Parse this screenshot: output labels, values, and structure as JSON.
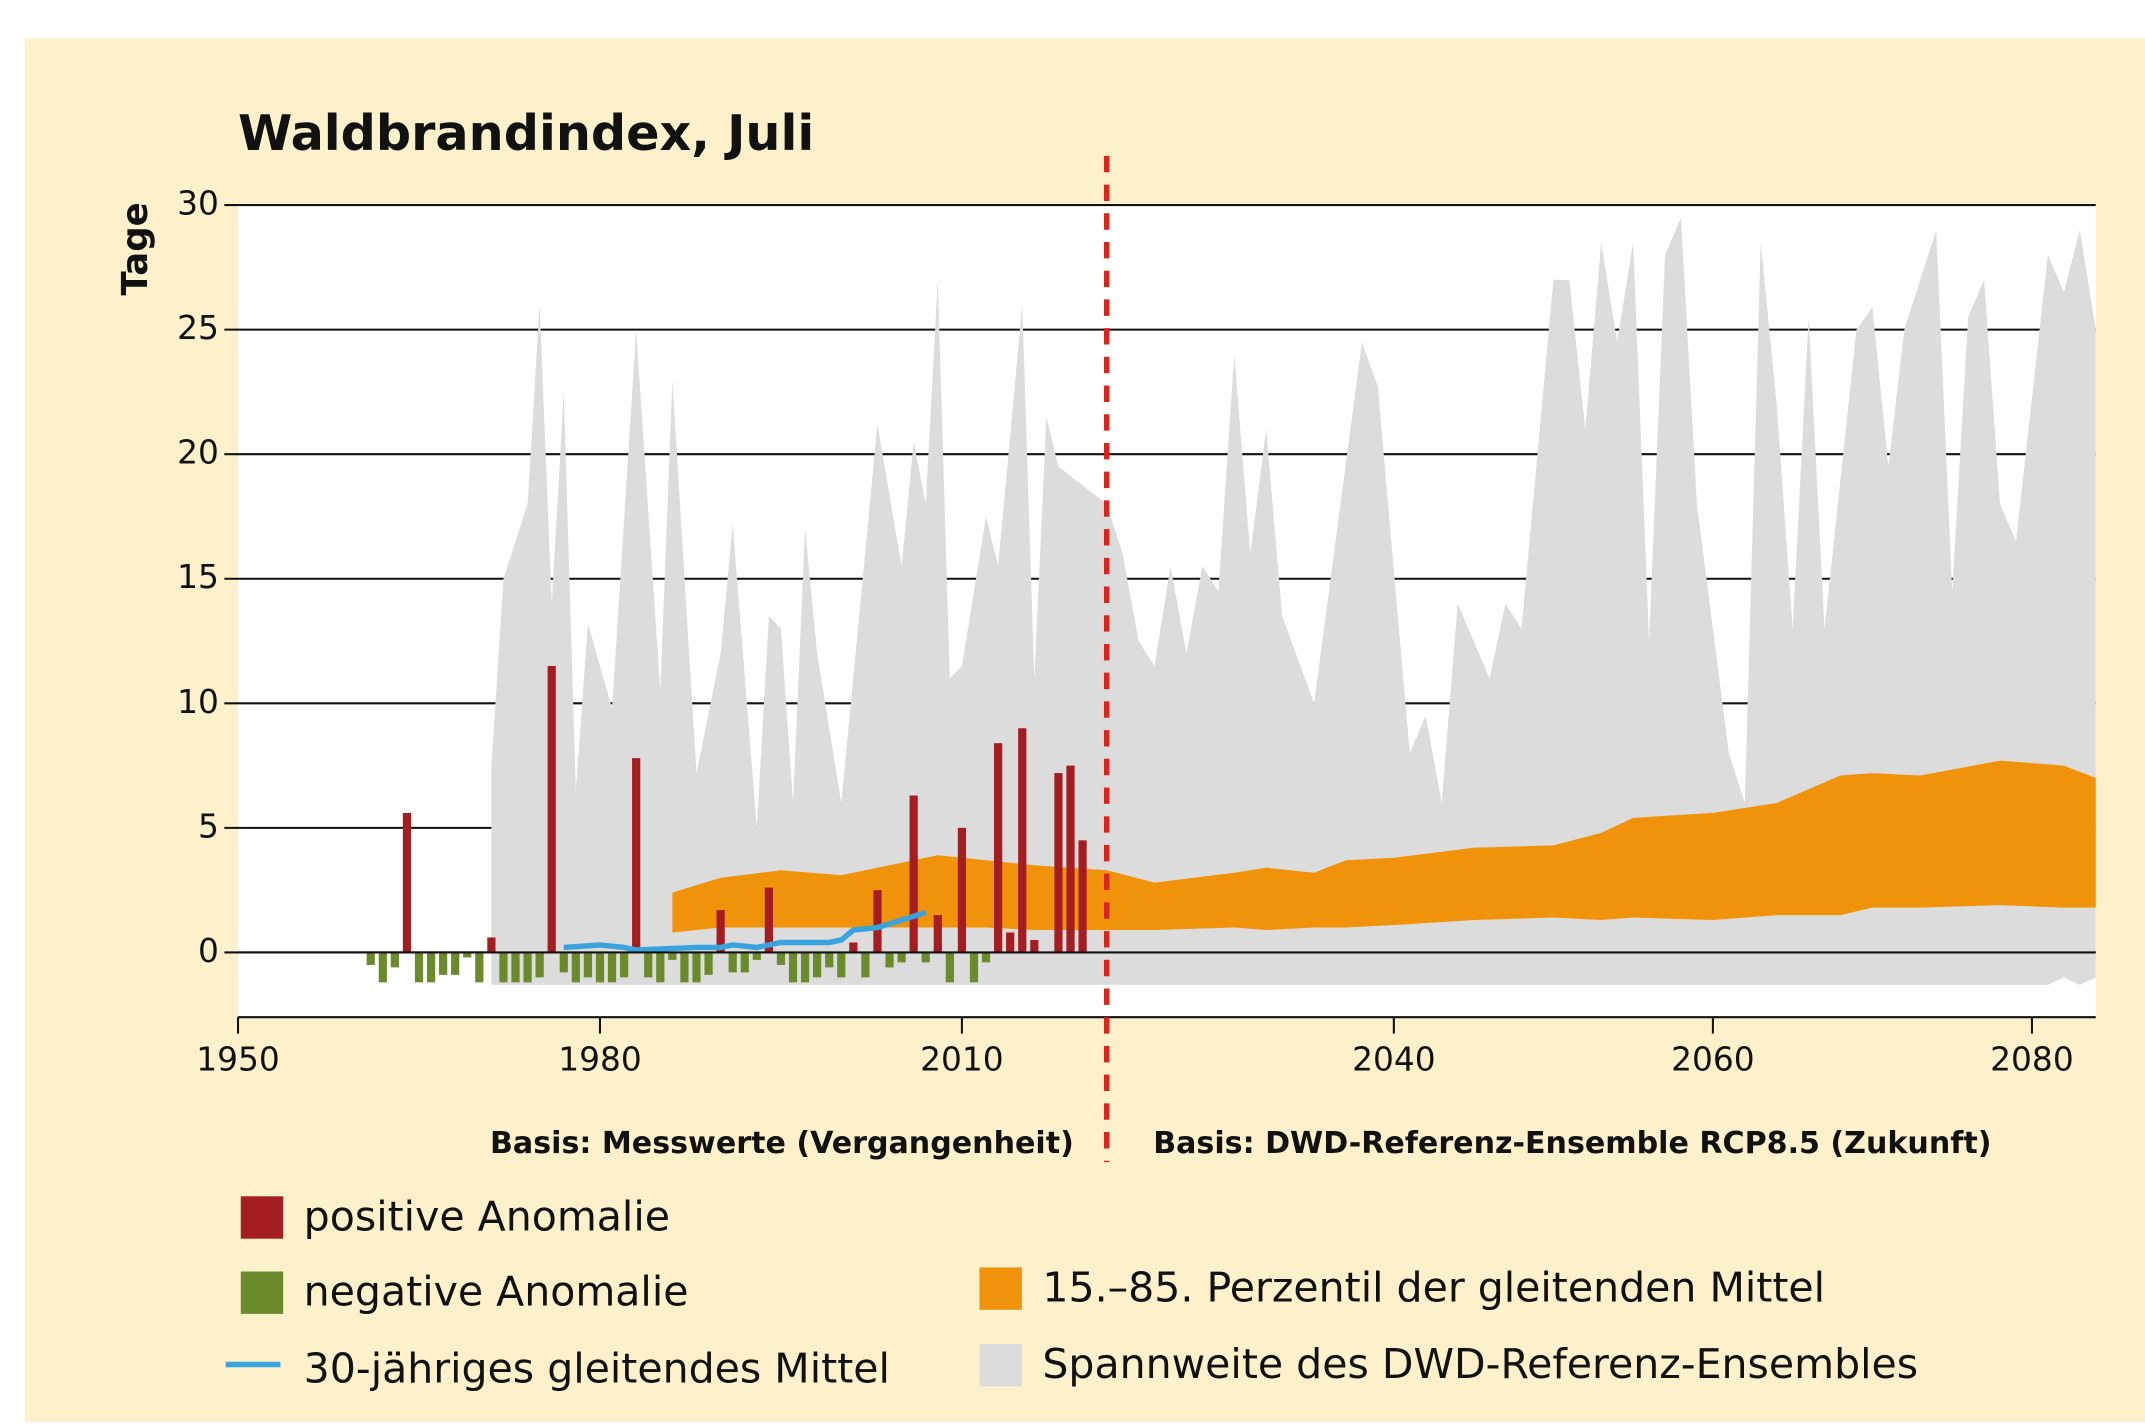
{
  "chart_data": {
    "type": "bar",
    "title": "Waldbrandindex, Juli",
    "y_label": "Tage",
    "xlim": [
      1950,
      2084
    ],
    "xticks": [
      1950,
      1980,
      2010,
      2040,
      2060,
      2080
    ],
    "ylim": [
      -2.6,
      30
    ],
    "yticks": [
      0,
      5,
      10,
      15,
      20,
      25,
      30
    ],
    "grid": true,
    "divider": 2022,
    "notes": [
      "Basis: Messwerte (Vergangenheit)",
      "Basis: DWD-Referenz-Ensemble RCP8.5 (Zukunft)"
    ],
    "anomalies": {
      "positive": {
        "name": "positive Anomalie",
        "color": "#a31d21"
      },
      "negative": {
        "name": "negative Anomalie",
        "color": "#6a8a2c"
      },
      "x": [
        1961,
        1962,
        1963,
        1964,
        1965,
        1966,
        1967,
        1968,
        1969,
        1970,
        1971,
        1972,
        1973,
        1974,
        1975,
        1976,
        1977,
        1978,
        1979,
        1980,
        1981,
        1982,
        1983,
        1984,
        1985,
        1986,
        1987,
        1988,
        1989,
        1990,
        1991,
        1992,
        1993,
        1994,
        1995,
        1996,
        1997,
        1998,
        1999,
        2000,
        2001,
        2002,
        2003,
        2004,
        2005,
        2006,
        2007,
        2008,
        2009,
        2010,
        2011,
        2012,
        2013,
        2014,
        2015,
        2016,
        2017,
        2018,
        2019,
        2020
      ],
      "values": [
        -0.5,
        -1.2,
        -0.6,
        5.6,
        -1.2,
        -1.2,
        -0.9,
        -0.9,
        -0.2,
        -1.2,
        0.6,
        -1.2,
        -1.2,
        -1.2,
        -1.0,
        11.5,
        -0.8,
        -1.2,
        -1.0,
        -1.2,
        -1.2,
        -1.0,
        7.8,
        -1.0,
        -1.2,
        -0.3,
        -1.2,
        -1.2,
        -0.9,
        1.7,
        -0.8,
        -0.8,
        -0.3,
        2.6,
        -0.5,
        -1.2,
        -1.2,
        -1.0,
        -0.6,
        -1.0,
        0.4,
        -1.0,
        2.5,
        -0.6,
        -0.4,
        6.3,
        -0.4,
        1.5,
        -1.2,
        5.0,
        -1.2,
        -0.4,
        8.4,
        0.8,
        9.0,
        0.5,
        0,
        7.2,
        7.5,
        4.5
      ]
    },
    "mean": {
      "name": "30-jähriges gleitendes Mittel",
      "color": "#3aa3dd",
      "x": [
        1977,
        1980,
        1982,
        1983,
        1988,
        1990,
        1991,
        1993,
        1995,
        1999,
        2000,
        2001,
        2003,
        2005,
        2007
      ],
      "values": [
        0.2,
        0.3,
        0.2,
        0.1,
        0.2,
        0.2,
        0.3,
        0.2,
        0.4,
        0.4,
        0.5,
        0.9,
        1.0,
        1.3,
        1.6
      ]
    },
    "percentile": {
      "name": "15.–85. Perzentil der gleitenden Mittel",
      "color": "#f0920a",
      "x": [
        1986,
        1990,
        1995,
        2000,
        2005,
        2008,
        2012,
        2016,
        2022,
        2025,
        2030,
        2032,
        2035,
        2037,
        2040,
        2045,
        2050,
        2053,
        2055,
        2060,
        2064,
        2068,
        2070,
        2073,
        2078,
        2082,
        2084
      ],
      "lower": [
        0.8,
        1.0,
        1.0,
        1.0,
        1.0,
        1.0,
        1.0,
        0.9,
        0.9,
        0.9,
        1.0,
        0.9,
        1.0,
        1.0,
        1.1,
        1.3,
        1.4,
        1.3,
        1.4,
        1.3,
        1.5,
        1.5,
        1.8,
        1.8,
        1.9,
        1.8,
        1.8
      ],
      "upper": [
        2.4,
        3.0,
        3.3,
        3.1,
        3.6,
        3.9,
        3.7,
        3.5,
        3.3,
        2.8,
        3.2,
        3.4,
        3.2,
        3.7,
        3.8,
        4.2,
        4.3,
        4.8,
        5.4,
        5.6,
        6.0,
        7.1,
        7.2,
        7.1,
        7.7,
        7.5,
        7.0
      ]
    },
    "range": {
      "name": "Spannweite des DWD-Referenz-Ensembles",
      "color": "#dcdcdc",
      "x": [
        1971,
        1972,
        1974,
        1975,
        1976,
        1977,
        1978,
        1979,
        1981,
        1983,
        1985,
        1986,
        1988,
        1990,
        1991,
        1993,
        1994,
        1995,
        1996,
        1997,
        1998,
        2000,
        2003,
        2005,
        2006,
        2007,
        2008,
        2009,
        2010,
        2012,
        2013,
        2015,
        2016,
        2017,
        2018,
        2022,
        2023,
        2024,
        2025,
        2026,
        2027,
        2028,
        2029,
        2030,
        2031,
        2032,
        2033,
        2035,
        2038,
        2039,
        2041,
        2042,
        2043,
        2044,
        2046,
        2047,
        2048,
        2050,
        2051,
        2052,
        2053,
        2054,
        2055,
        2056,
        2057,
        2058,
        2059,
        2061,
        2062,
        2063,
        2064,
        2065,
        2066,
        2067,
        2069,
        2070,
        2071,
        2072,
        2074,
        2075,
        2076,
        2077,
        2078,
        2079,
        2081,
        2082,
        2083,
        2084
      ],
      "lower": [
        -1.3,
        -1.3,
        -1.3,
        -1.3,
        -1.3,
        -1.3,
        -1.3,
        -1.3,
        -1.3,
        -1.3,
        -1.3,
        -1.3,
        -1.3,
        -1.3,
        -1.3,
        -1.3,
        -1.3,
        -1.3,
        -1.3,
        -1.3,
        -1.3,
        -1.3,
        -1.3,
        -1.3,
        -1.3,
        -1.3,
        -1.3,
        -1.3,
        -1.3,
        -1.3,
        -1.3,
        -1.3,
        -1.3,
        -1.3,
        -1.3,
        -1.3,
        -1.3,
        -1.3,
        -1.3,
        -1.3,
        -1.3,
        -1.3,
        -1.3,
        -1.3,
        -1.3,
        -1.3,
        -1.3,
        -1.3,
        -1.3,
        -1.3,
        -1.3,
        -1.3,
        -1.3,
        -1.3,
        -1.3,
        -1.3,
        -1.3,
        -1.3,
        -1.3,
        -1.3,
        -1.3,
        -1.3,
        -1.3,
        -1.3,
        -1.3,
        -1.3,
        -1.3,
        -1.3,
        -1.3,
        -1.3,
        -1.3,
        -1.3,
        -1.3,
        -1.3,
        -1.3,
        -1.3,
        -1.3,
        -1.3,
        -1.3,
        -1.3,
        -1.3,
        -1.3,
        -1.3,
        -1.3,
        -1.3,
        -1.0,
        -1.3,
        -1.0
      ],
      "upper": [
        7.5,
        15,
        18,
        26,
        14,
        22.5,
        6.5,
        13.2,
        9.8,
        25,
        10.5,
        23,
        7.2,
        12,
        17.2,
        5,
        13.5,
        13,
        6,
        17,
        12,
        6,
        21.2,
        15.5,
        20.5,
        18,
        27,
        11,
        11.5,
        17.5,
        15.5,
        26,
        11,
        21.5,
        19.5,
        18,
        16,
        12.5,
        11.5,
        15.5,
        12,
        15.5,
        14.5,
        24,
        16,
        21,
        13.5,
        10,
        24.5,
        22.7,
        8,
        9.5,
        6,
        14,
        11,
        14,
        13,
        27,
        27,
        21,
        28.5,
        24.5,
        28.5,
        12.5,
        28,
        29.5,
        18,
        8,
        6,
        28.5,
        22,
        13,
        25.5,
        13,
        25,
        25.9,
        19.5,
        25,
        29,
        14.5,
        25.5,
        27,
        18,
        16.5,
        28,
        26.5,
        29,
        25
      ]
    }
  }
}
